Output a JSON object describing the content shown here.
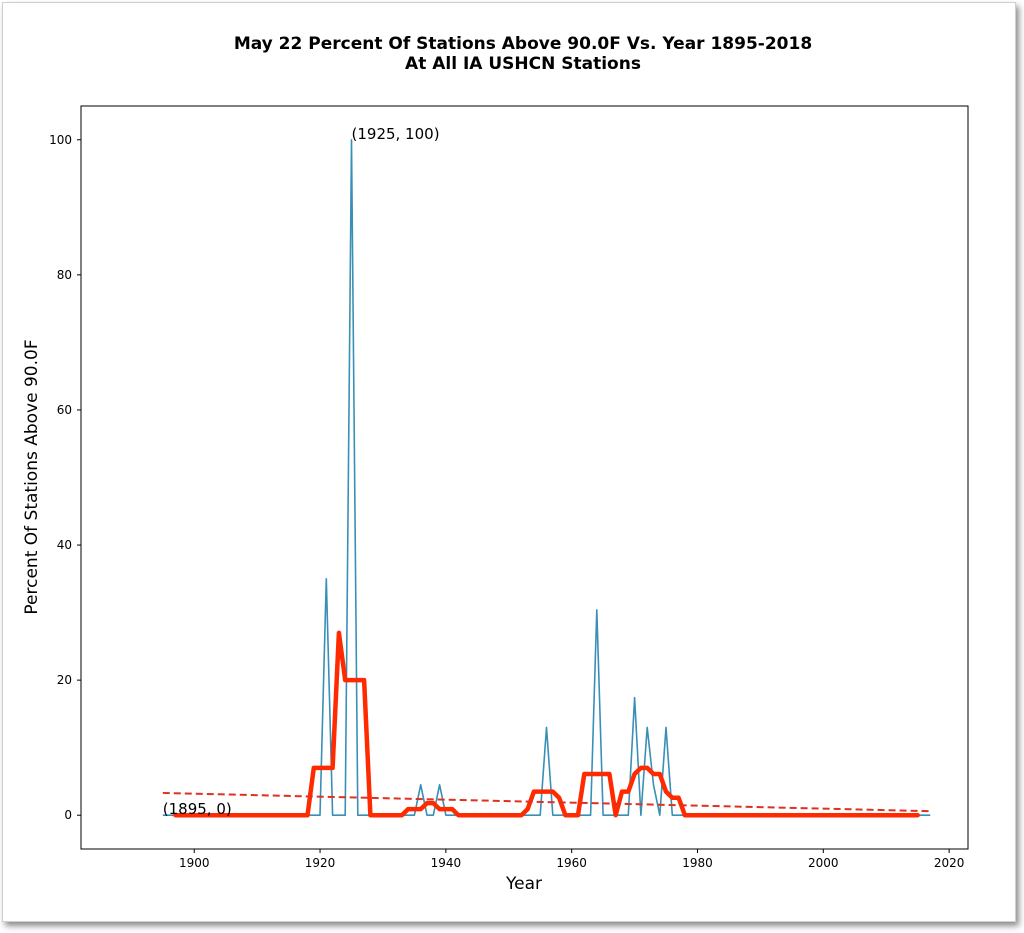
{
  "chart_data": {
    "type": "line",
    "title": "May 22 Percent Of Stations Above 90.0F Vs. Year 1895-2018",
    "subtitle": "At All IA USHCN Stations",
    "xlabel": "Year",
    "ylabel": "Percent Of Stations Above 90.0F",
    "xlim": [
      1882,
      2023
    ],
    "ylim": [
      -5,
      105
    ],
    "xticks": [
      1900,
      1920,
      1940,
      1960,
      1980,
      2000,
      2020
    ],
    "yticks": [
      0,
      20,
      40,
      60,
      80,
      100
    ],
    "grid": false,
    "colors": {
      "raw": "#3a8fb7",
      "smooth": "#ff2a00",
      "trend": "#e03020"
    },
    "series": [
      {
        "style": "thin-line",
        "x": [
          1895,
          1896,
          1897,
          1898,
          1899,
          1900,
          1901,
          1902,
          1903,
          1904,
          1905,
          1906,
          1907,
          1908,
          1909,
          1910,
          1911,
          1912,
          1913,
          1914,
          1915,
          1916,
          1917,
          1918,
          1919,
          1920,
          1921,
          1922,
          1923,
          1924,
          1925,
          1926,
          1927,
          1928,
          1929,
          1930,
          1931,
          1932,
          1933,
          1934,
          1935,
          1936,
          1937,
          1938,
          1939,
          1940,
          1941,
          1942,
          1943,
          1944,
          1945,
          1946,
          1947,
          1948,
          1949,
          1950,
          1951,
          1952,
          1953,
          1954,
          1955,
          1956,
          1957,
          1958,
          1959,
          1960,
          1961,
          1962,
          1963,
          1964,
          1965,
          1966,
          1967,
          1968,
          1969,
          1970,
          1971,
          1972,
          1973,
          1974,
          1975,
          1976,
          1977,
          1978,
          1979,
          1980,
          1981,
          1982,
          1983,
          1984,
          1985,
          1986,
          1987,
          1988,
          1989,
          1990,
          1991,
          1992,
          1993,
          1994,
          1995,
          1996,
          1997,
          1998,
          1999,
          2000,
          2001,
          2002,
          2003,
          2004,
          2005,
          2006,
          2007,
          2008,
          2009,
          2010,
          2011,
          2012,
          2013,
          2014,
          2015,
          2016,
          2017
        ],
        "y": [
          0,
          0,
          0,
          0,
          0,
          0,
          0,
          0,
          0,
          0,
          0,
          0,
          0,
          0,
          0,
          0,
          0,
          0,
          0,
          0,
          0,
          0,
          0,
          0,
          0,
          0,
          35,
          0,
          0,
          0,
          100,
          0,
          0,
          0,
          0,
          0,
          0,
          0,
          0,
          0,
          0,
          4.5,
          0,
          0,
          4.5,
          0,
          0,
          0,
          0,
          0,
          0,
          0,
          0,
          0,
          0,
          0,
          0,
          0,
          0,
          0,
          0,
          13,
          0,
          0,
          0,
          0,
          0,
          0,
          0,
          30.4,
          0,
          0,
          0,
          0,
          0,
          17.4,
          0,
          13,
          4.5,
          0,
          13,
          0,
          0,
          0,
          0,
          0,
          0,
          0,
          0,
          0,
          0,
          0,
          0,
          0,
          0,
          0,
          0,
          0,
          0,
          0,
          0,
          0,
          0,
          0,
          0,
          0,
          0,
          0,
          0,
          0,
          0,
          0,
          0,
          0,
          0,
          0,
          0,
          0,
          0,
          0,
          0,
          0,
          0
        ]
      },
      {
        "style": "thick-line",
        "x": [
          1897,
          1898,
          1899,
          1900,
          1901,
          1902,
          1903,
          1904,
          1905,
          1906,
          1907,
          1908,
          1909,
          1910,
          1911,
          1912,
          1913,
          1914,
          1915,
          1916,
          1917,
          1918,
          1919,
          1920,
          1921,
          1922,
          1923,
          1924,
          1925,
          1926,
          1927,
          1928,
          1929,
          1930,
          1931,
          1932,
          1933,
          1934,
          1935,
          1936,
          1937,
          1938,
          1939,
          1940,
          1941,
          1942,
          1943,
          1944,
          1945,
          1946,
          1947,
          1948,
          1949,
          1950,
          1951,
          1952,
          1953,
          1954,
          1955,
          1956,
          1957,
          1958,
          1959,
          1960,
          1961,
          1962,
          1963,
          1964,
          1965,
          1966,
          1967,
          1968,
          1969,
          1970,
          1971,
          1972,
          1973,
          1974,
          1975,
          1976,
          1977,
          1978,
          1979,
          1980,
          1981,
          1982,
          1983,
          1984,
          1985,
          1986,
          1987,
          1988,
          1989,
          1990,
          1991,
          1992,
          1993,
          1994,
          1995,
          1996,
          1997,
          1998,
          1999,
          2000,
          2001,
          2002,
          2003,
          2004,
          2005,
          2006,
          2007,
          2008,
          2009,
          2010,
          2011,
          2012,
          2013,
          2014,
          2015
        ],
        "y": [
          0,
          0,
          0,
          0,
          0,
          0,
          0,
          0,
          0,
          0,
          0,
          0,
          0,
          0,
          0,
          0,
          0,
          0,
          0,
          0,
          0,
          0,
          7,
          7,
          7,
          7,
          27,
          20,
          20,
          20,
          20,
          0,
          0,
          0,
          0,
          0,
          0,
          0.9,
          0.9,
          0.9,
          1.8,
          1.8,
          0.9,
          0.9,
          0.9,
          0,
          0,
          0,
          0,
          0,
          0,
          0,
          0,
          0,
          0,
          0,
          0.9,
          3.5,
          3.5,
          3.5,
          3.5,
          2.6,
          0,
          0,
          0,
          6.1,
          6.1,
          6.1,
          6.1,
          6.1,
          0,
          3.5,
          3.5,
          6.1,
          7,
          7,
          6.1,
          6.1,
          3.5,
          2.6,
          2.6,
          0,
          0,
          0,
          0,
          0,
          0,
          0,
          0,
          0,
          0,
          0,
          0,
          0,
          0,
          0,
          0,
          0,
          0,
          0,
          0,
          0,
          0,
          0,
          0,
          0,
          0,
          0,
          0,
          0,
          0,
          0,
          0,
          0,
          0,
          0,
          0,
          0,
          0
        ]
      },
      {
        "style": "dashed-trend",
        "x": [
          1895,
          2017
        ],
        "y": [
          3.3,
          0.6
        ]
      }
    ],
    "annotations": [
      {
        "text": "(1925, 100)",
        "x": 1925,
        "y": 100
      },
      {
        "text": "(1895, 0)",
        "x": 1895,
        "y": 0
      }
    ]
  }
}
